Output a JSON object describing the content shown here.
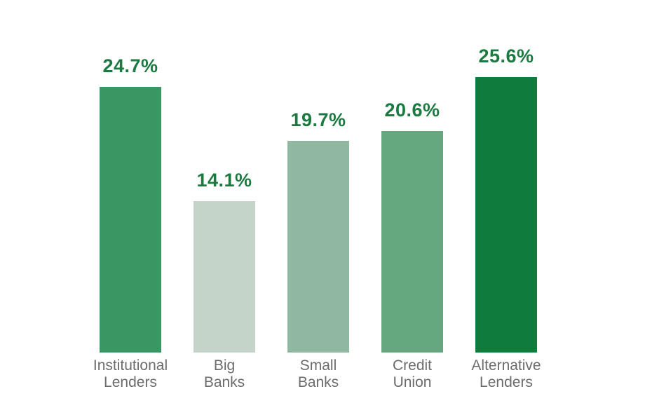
{
  "chart_data": {
    "type": "bar",
    "title": "",
    "xlabel": "",
    "ylabel": "",
    "ylim": [
      0,
      27
    ],
    "grid": false,
    "legend": false,
    "background": "#FFFFFF",
    "value_label_color": "#1B7A40",
    "category_label_color": "#6C6C6C",
    "categories": [
      "Institutional Lenders",
      "Big Banks",
      "Small Banks",
      "Credit Union",
      "Alternative Lenders"
    ],
    "category_lines": [
      [
        "Institutional",
        "Lenders"
      ],
      [
        "Big",
        "Banks"
      ],
      [
        "Small",
        "Banks"
      ],
      [
        "Credit",
        "Union"
      ],
      [
        "Alternative",
        "Lenders"
      ]
    ],
    "values": [
      24.7,
      14.1,
      19.7,
      20.6,
      25.6
    ],
    "value_labels": [
      "24.7%",
      "14.1%",
      "19.7%",
      "20.6%",
      "25.6%"
    ],
    "bar_colors": [
      "#3A9663",
      "#C5D4C9",
      "#90B7A0",
      "#65A880",
      "#0E7C3A"
    ]
  }
}
